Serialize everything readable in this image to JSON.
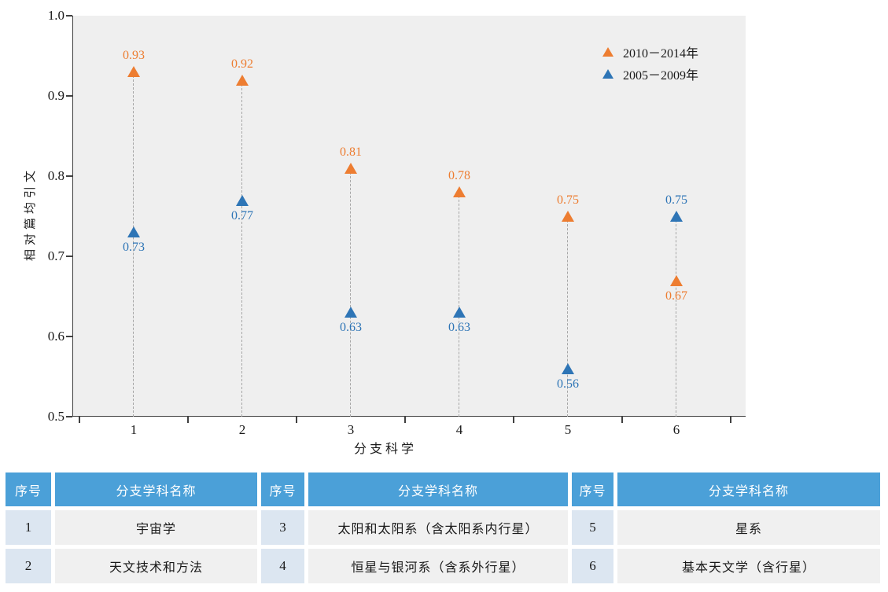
{
  "chart_data": {
    "type": "scatter",
    "title": "",
    "xlabel": "分支科学",
    "ylabel": "相对篇均引文",
    "categories": [
      1,
      2,
      3,
      4,
      5,
      6
    ],
    "xlim": [
      0.5,
      6.5
    ],
    "ylim": [
      0.5,
      1.0
    ],
    "yticks": [
      0.5,
      0.6,
      0.7,
      0.8,
      0.9,
      1.0
    ],
    "grid": false,
    "legend_position": "top-right-inside",
    "plot_bg": "#EFEFEF",
    "guide_line_color": "#A6A6A6",
    "series": [
      {
        "name": "2010－2014年",
        "marker": "triangle",
        "color": "#ED7D31",
        "values": [
          0.93,
          0.92,
          0.81,
          0.78,
          0.75,
          0.67
        ],
        "label_position": [
          "above",
          "above",
          "above",
          "above",
          "above",
          "below"
        ]
      },
      {
        "name": "2005－2009年",
        "marker": "triangle",
        "color": "#2E75B6",
        "values": [
          0.73,
          0.77,
          0.63,
          0.63,
          0.56,
          0.75
        ],
        "label_position": [
          "below",
          "below",
          "below",
          "below",
          "below",
          "above"
        ]
      }
    ]
  },
  "table": {
    "header_no": "序号",
    "header_name": "分支学科名称",
    "groups": [
      {
        "rows": [
          {
            "no": "1",
            "name": "宇宙学"
          },
          {
            "no": "2",
            "name": "天文技术和方法"
          }
        ]
      },
      {
        "rows": [
          {
            "no": "3",
            "name": "太阳和太阳系（含太阳系内行星）"
          },
          {
            "no": "4",
            "name": "恒星与银河系（含系外行星）"
          }
        ]
      },
      {
        "rows": [
          {
            "no": "5",
            "name": "星系"
          },
          {
            "no": "6",
            "name": "基本天文学（含行星）"
          }
        ]
      }
    ]
  }
}
